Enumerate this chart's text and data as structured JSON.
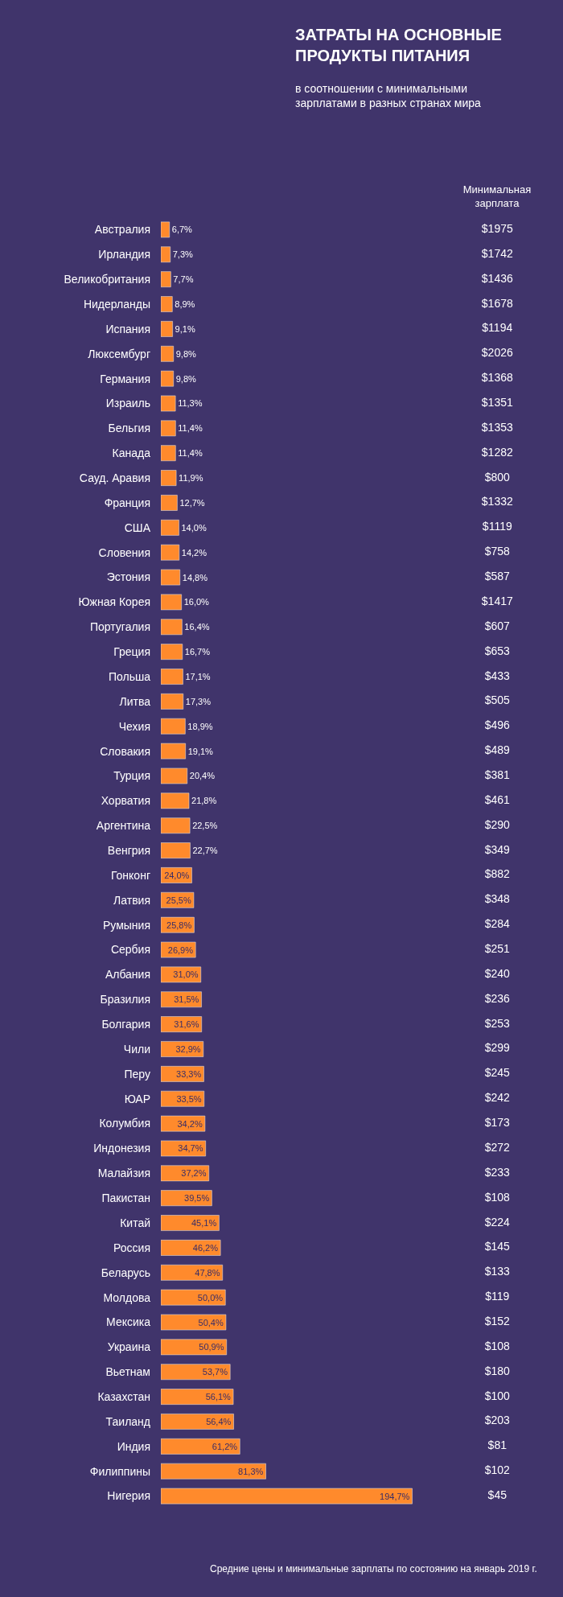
{
  "chart_data": [
    {
      "type": "bar",
      "orientation": "horizontal",
      "title": "ЗАТРАТЫ НА ОСНОВНЫЕ ПРОДУКТЫ ПИТАНИЯ",
      "subtitle": "в соотношении с минимальными зарплатами в разных странах мира",
      "categories": [
        "Австралия",
        "Ирландия",
        "Великобритания",
        "Нидерланды",
        "Испания",
        "Люксембург",
        "Германия",
        "Израиль",
        "Бельгия",
        "Канада",
        "Сауд. Аравия",
        "Франция",
        "США",
        "Словения",
        "Эстония",
        "Южная Корея",
        "Португалия",
        "Греция",
        "Польша",
        "Литва",
        "Чехия",
        "Словакия",
        "Турция",
        "Хорватия",
        "Аргентина",
        "Венгрия",
        "Гонконг",
        "Латвия",
        "Румыния",
        "Сербия",
        "Албания",
        "Бразилия",
        "Болгария",
        "Чили",
        "Перу",
        "ЮАР",
        "Колумбия",
        "Индонезия",
        "Малайзия",
        "Пакистан",
        "Китай",
        "Россия",
        "Беларусь",
        "Молдова",
        "Мексика",
        "Украина",
        "Вьетнам",
        "Казахстан",
        "Таиланд",
        "Индия",
        "Филиппины",
        "Нигерия"
      ],
      "values": [
        6.7,
        7.3,
        7.7,
        8.9,
        9.1,
        9.8,
        9.8,
        11.3,
        11.4,
        11.4,
        11.9,
        12.7,
        14.0,
        14.2,
        14.8,
        16.0,
        16.4,
        16.7,
        17.1,
        17.3,
        18.9,
        19.1,
        20.4,
        21.8,
        22.5,
        22.7,
        24.0,
        25.5,
        25.8,
        26.9,
        31.0,
        31.5,
        31.6,
        32.9,
        33.3,
        33.5,
        34.2,
        34.7,
        37.2,
        39.5,
        45.1,
        46.2,
        47.8,
        50.0,
        50.4,
        50.9,
        53.7,
        56.1,
        56.4,
        61.2,
        81.3,
        194.7
      ],
      "value_labels": [
        "6,7%",
        "7,3%",
        "7,7%",
        "8,9%",
        "9,1%",
        "9,8%",
        "9,8%",
        "11,3%",
        "11,4%",
        "11,4%",
        "11,9%",
        "12,7%",
        "14,0%",
        "14,2%",
        "14,8%",
        "16,0%",
        "16,4%",
        "16,7%",
        "17,1%",
        "17,3%",
        "18,9%",
        "19,1%",
        "20,4%",
        "21,8%",
        "22,5%",
        "22,7%",
        "24,0%",
        "25,5%",
        "25,8%",
        "26,9%",
        "31,0%",
        "31,5%",
        "31,6%",
        "32,9%",
        "33,3%",
        "33,5%",
        "34,2%",
        "34,7%",
        "37,2%",
        "39,5%",
        "45,1%",
        "46,2%",
        "47,8%",
        "50,0%",
        "50,4%",
        "50,9%",
        "53,7%",
        "56,1%",
        "56,4%",
        "61,2%",
        "81,3%",
        "194,7%"
      ],
      "color": "#ff8a2c",
      "tick_labels": "y",
      "annotations": [
        "Средние цены и минимальные зарплаты по состоянию на январь 2019 г."
      ]
    },
    {
      "type": "other",
      "title": "Минимальная зарплата",
      "values": [
        1975,
        1742,
        1436,
        1678,
        1194,
        2026,
        1368,
        1351,
        1353,
        1282,
        800,
        1332,
        1119,
        758,
        587,
        1417,
        607,
        653,
        433,
        505,
        496,
        489,
        381,
        461,
        290,
        349,
        882,
        348,
        284,
        251,
        240,
        236,
        253,
        299,
        245,
        242,
        173,
        272,
        233,
        108,
        224,
        145,
        133,
        119,
        152,
        108,
        180,
        100,
        203,
        81,
        102,
        45
      ],
      "value_labels": [
        "$1975",
        "$1742",
        "$1436",
        "$1678",
        "$1194",
        "$2026",
        "$1368",
        "$1351",
        "$1353",
        "$1282",
        "$800",
        "$1332",
        "$1119",
        "$758",
        "$587",
        "$1417",
        "$607",
        "$653",
        "$433",
        "$505",
        "$496",
        "$489",
        "$381",
        "$461",
        "$290",
        "$349",
        "$882",
        "$348",
        "$284",
        "$251",
        "$240",
        "$236",
        "$253",
        "$299",
        "$245",
        "$242",
        "$173",
        "$272",
        "$233",
        "$108",
        "$224",
        "$145",
        "$133",
        "$119",
        "$152",
        "$108",
        "$180",
        "$100",
        "$203",
        "$81",
        "$102",
        "$45"
      ]
    }
  ]
}
